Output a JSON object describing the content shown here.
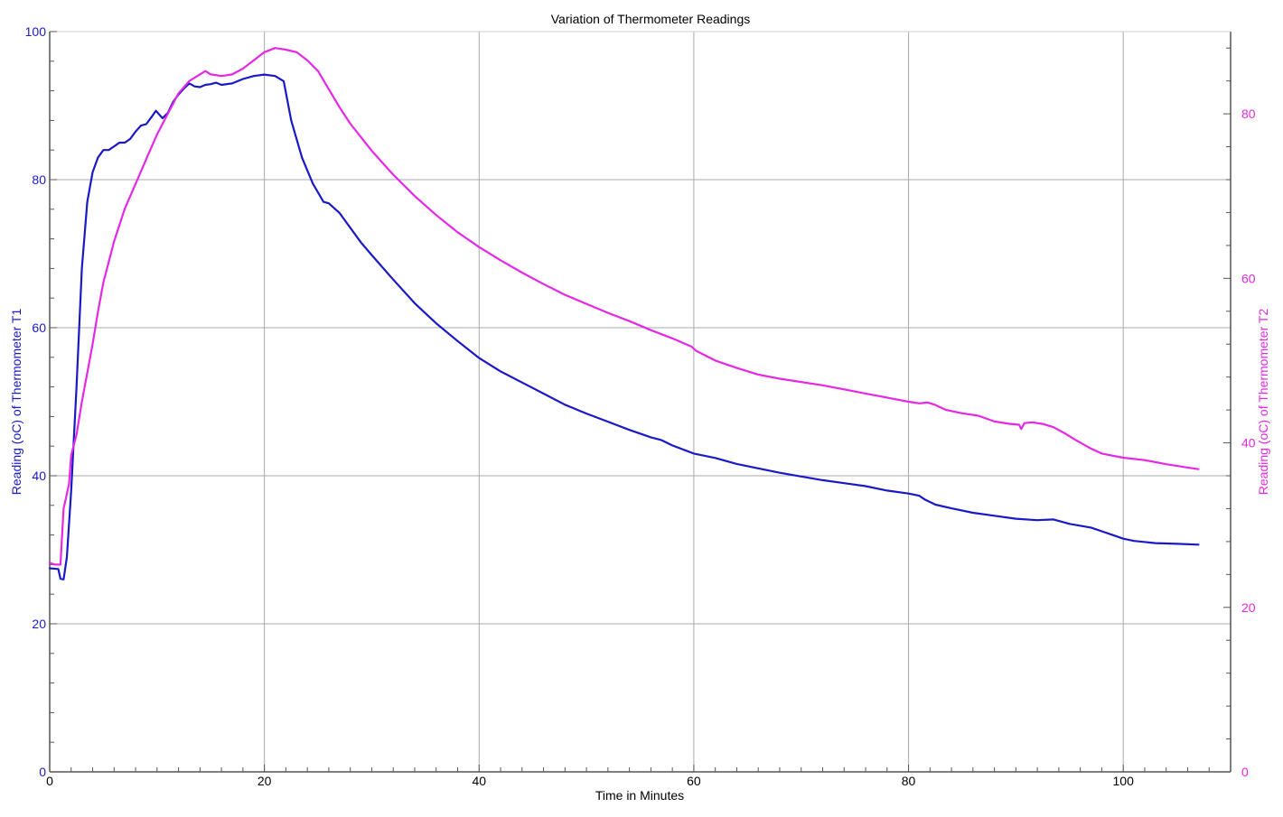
{
  "chart_data": {
    "type": "line",
    "title": "Variation of Thermometer Readings",
    "xlabel": "Time in Minutes",
    "ylabel_left": "Reading (oC) of Thermometer T1",
    "ylabel_right": "Reading (oC) of Thermometer T2",
    "xlim": [
      0,
      110
    ],
    "ylim_left": [
      0,
      100
    ],
    "ylim_right": [
      0,
      90
    ],
    "x_ticks": [
      0,
      20,
      40,
      60,
      80,
      100
    ],
    "y_left_ticks": [
      0,
      20,
      40,
      60,
      80,
      100
    ],
    "y_right_ticks": [
      0,
      20,
      40,
      60,
      80
    ],
    "grid": true,
    "colors": {
      "T1": "#1919c8",
      "T2": "#e628e6",
      "grid": "#a8a8a8",
      "frame": "#555555"
    },
    "series": [
      {
        "name": "T1",
        "axis": "left",
        "points": [
          [
            0,
            27.5
          ],
          [
            0.8,
            27.4
          ],
          [
            1.0,
            26.1
          ],
          [
            1.3,
            26.0
          ],
          [
            1.6,
            29.0
          ],
          [
            2.0,
            38.0
          ],
          [
            2.5,
            52.0
          ],
          [
            3.0,
            68.0
          ],
          [
            3.5,
            77.0
          ],
          [
            4.0,
            81.0
          ],
          [
            4.5,
            83.0
          ],
          [
            5.0,
            84.0
          ],
          [
            5.5,
            84.0
          ],
          [
            6.0,
            84.5
          ],
          [
            6.5,
            85.0
          ],
          [
            7.0,
            85.0
          ],
          [
            7.5,
            85.5
          ],
          [
            8.0,
            86.5
          ],
          [
            8.5,
            87.3
          ],
          [
            9.0,
            87.5
          ],
          [
            9.5,
            88.5
          ],
          [
            9.9,
            89.3
          ],
          [
            10.5,
            88.3
          ],
          [
            11.0,
            89.0
          ],
          [
            11.5,
            90.5
          ],
          [
            12.0,
            91.5
          ],
          [
            12.5,
            92.3
          ],
          [
            13.0,
            93.0
          ],
          [
            13.5,
            92.6
          ],
          [
            14.0,
            92.5
          ],
          [
            14.5,
            92.8
          ],
          [
            15.0,
            92.9
          ],
          [
            15.5,
            93.1
          ],
          [
            16.0,
            92.8
          ],
          [
            17.0,
            93.0
          ],
          [
            18.0,
            93.6
          ],
          [
            19.0,
            94.0
          ],
          [
            20.0,
            94.2
          ],
          [
            21.0,
            94.0
          ],
          [
            21.8,
            93.3
          ],
          [
            22.5,
            88.0
          ],
          [
            23.5,
            83.0
          ],
          [
            24.5,
            79.5
          ],
          [
            25.5,
            77.0
          ],
          [
            26.0,
            76.8
          ],
          [
            27.0,
            75.5
          ],
          [
            28.0,
            73.5
          ],
          [
            29.0,
            71.5
          ],
          [
            30.0,
            69.8
          ],
          [
            32.0,
            66.5
          ],
          [
            34.0,
            63.3
          ],
          [
            36.0,
            60.6
          ],
          [
            38.0,
            58.2
          ],
          [
            40.0,
            55.9
          ],
          [
            42.0,
            54.1
          ],
          [
            44.0,
            52.6
          ],
          [
            46.0,
            51.1
          ],
          [
            48.0,
            49.6
          ],
          [
            50.0,
            48.4
          ],
          [
            52.0,
            47.3
          ],
          [
            54.0,
            46.2
          ],
          [
            56.0,
            45.2
          ],
          [
            57.0,
            44.8
          ],
          [
            58.0,
            44.1
          ],
          [
            60.0,
            43.0
          ],
          [
            62.0,
            42.4
          ],
          [
            64.0,
            41.6
          ],
          [
            66.0,
            41.0
          ],
          [
            68.0,
            40.4
          ],
          [
            70.0,
            39.9
          ],
          [
            72.0,
            39.4
          ],
          [
            74.0,
            39.0
          ],
          [
            76.0,
            38.6
          ],
          [
            78.0,
            38.0
          ],
          [
            80.0,
            37.6
          ],
          [
            81.0,
            37.3
          ],
          [
            81.5,
            36.8
          ],
          [
            82.5,
            36.1
          ],
          [
            84.0,
            35.6
          ],
          [
            86.0,
            35.0
          ],
          [
            88.0,
            34.6
          ],
          [
            90.0,
            34.2
          ],
          [
            92.0,
            34.0
          ],
          [
            93.5,
            34.1
          ],
          [
            95.0,
            33.5
          ],
          [
            97.0,
            33.0
          ],
          [
            98.0,
            32.5
          ],
          [
            99.0,
            32.0
          ],
          [
            100.0,
            31.5
          ],
          [
            101.0,
            31.2
          ],
          [
            103.0,
            30.9
          ],
          [
            105.0,
            30.8
          ],
          [
            107.0,
            30.7
          ]
        ]
      },
      {
        "name": "T2",
        "axis": "right",
        "points": [
          [
            0,
            25.4
          ],
          [
            0.5,
            25.2
          ],
          [
            1.0,
            25.2
          ],
          [
            1.3,
            32.0
          ],
          [
            1.8,
            35.0
          ],
          [
            2.0,
            38.5
          ],
          [
            2.5,
            41.0
          ],
          [
            3.0,
            45.0
          ],
          [
            3.5,
            48.5
          ],
          [
            4.0,
            52.0
          ],
          [
            4.5,
            56.0
          ],
          [
            5.0,
            59.5
          ],
          [
            6.0,
            64.5
          ],
          [
            7.0,
            68.5
          ],
          [
            8.0,
            71.5
          ],
          [
            9.0,
            74.5
          ],
          [
            10.0,
            77.5
          ],
          [
            11.0,
            80.0
          ],
          [
            12.0,
            82.5
          ],
          [
            13.0,
            84.0
          ],
          [
            14.0,
            84.8
          ],
          [
            14.5,
            85.2
          ],
          [
            15.0,
            84.8
          ],
          [
            16.0,
            84.6
          ],
          [
            17.0,
            84.8
          ],
          [
            18.0,
            85.5
          ],
          [
            19.0,
            86.5
          ],
          [
            20.0,
            87.5
          ],
          [
            21.0,
            88.0
          ],
          [
            22.0,
            87.8
          ],
          [
            23.0,
            87.5
          ],
          [
            24.0,
            86.5
          ],
          [
            25.0,
            85.2
          ],
          [
            26.0,
            83.0
          ],
          [
            27.0,
            80.8
          ],
          [
            28.0,
            78.8
          ],
          [
            30.0,
            75.5
          ],
          [
            32.0,
            72.6
          ],
          [
            34.0,
            70.0
          ],
          [
            36.0,
            67.7
          ],
          [
            38.0,
            65.6
          ],
          [
            40.0,
            63.8
          ],
          [
            42.0,
            62.2
          ],
          [
            44.0,
            60.7
          ],
          [
            46.0,
            59.3
          ],
          [
            48.0,
            58.0
          ],
          [
            50.0,
            56.9
          ],
          [
            52.0,
            55.8
          ],
          [
            54.0,
            54.8
          ],
          [
            56.0,
            53.7
          ],
          [
            58.0,
            52.7
          ],
          [
            59.8,
            51.7
          ],
          [
            60.2,
            51.2
          ],
          [
            62.0,
            50.0
          ],
          [
            64.0,
            49.1
          ],
          [
            66.0,
            48.3
          ],
          [
            68.0,
            47.8
          ],
          [
            70.0,
            47.4
          ],
          [
            72.0,
            47.0
          ],
          [
            74.0,
            46.5
          ],
          [
            76.0,
            46.0
          ],
          [
            78.0,
            45.5
          ],
          [
            80.0,
            45.0
          ],
          [
            81.0,
            44.8
          ],
          [
            81.8,
            44.9
          ],
          [
            82.5,
            44.6
          ],
          [
            83.5,
            44.0
          ],
          [
            85.0,
            43.6
          ],
          [
            86.5,
            43.3
          ],
          [
            88.0,
            42.6
          ],
          [
            89.5,
            42.3
          ],
          [
            90.3,
            42.2
          ],
          [
            90.5,
            41.7
          ],
          [
            90.8,
            42.4
          ],
          [
            91.5,
            42.5
          ],
          [
            92.5,
            42.3
          ],
          [
            93.5,
            41.9
          ],
          [
            94.5,
            41.2
          ],
          [
            95.5,
            40.4
          ],
          [
            97.0,
            39.3
          ],
          [
            98.0,
            38.7
          ],
          [
            100.0,
            38.2
          ],
          [
            102.0,
            37.9
          ],
          [
            104.0,
            37.4
          ],
          [
            106.0,
            37.0
          ],
          [
            107.0,
            36.8
          ]
        ]
      }
    ]
  }
}
